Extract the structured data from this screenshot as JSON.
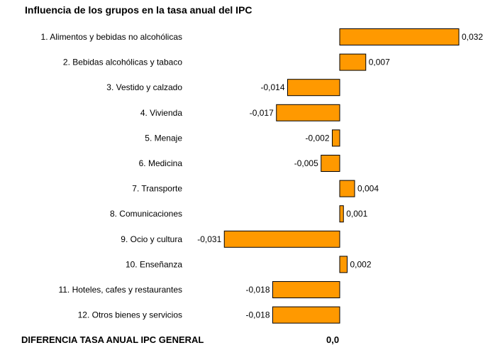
{
  "chart_data": {
    "type": "bar",
    "orientation": "horizontal",
    "title": "Influencia de los grupos en la tasa anual del IPC",
    "categories": [
      "1. Alimentos y bebidas no alcohólicas",
      "2. Bebidas alcohólicas y tabaco",
      "3. Vestido y calzado",
      "4. Vivienda",
      "5. Menaje",
      "6. Medicina",
      "7. Transporte",
      "8. Comunicaciones",
      "9. Ocio y cultura",
      "10. Enseñanza",
      "11. Hoteles, cafes y restaurantes",
      "12. Otros bienes y servicios"
    ],
    "values": [
      0.032,
      0.007,
      -0.014,
      -0.017,
      -0.002,
      -0.005,
      0.004,
      0.001,
      -0.031,
      0.002,
      -0.018,
      -0.018
    ],
    "value_labels": [
      "0,032",
      "0,007",
      "-0,014",
      "-0,017",
      "-0,002",
      "-0,005",
      "0,004",
      "0,001",
      "-0,031",
      "0,002",
      "-0,018",
      "-0,018"
    ],
    "xlim": [
      -0.031,
      0.032
    ],
    "bar_color": "#ff9900",
    "grid": false,
    "legend": "none"
  },
  "footer": {
    "label": "DIFERENCIA TASA ANUAL IPC GENERAL",
    "value": "0,0"
  }
}
